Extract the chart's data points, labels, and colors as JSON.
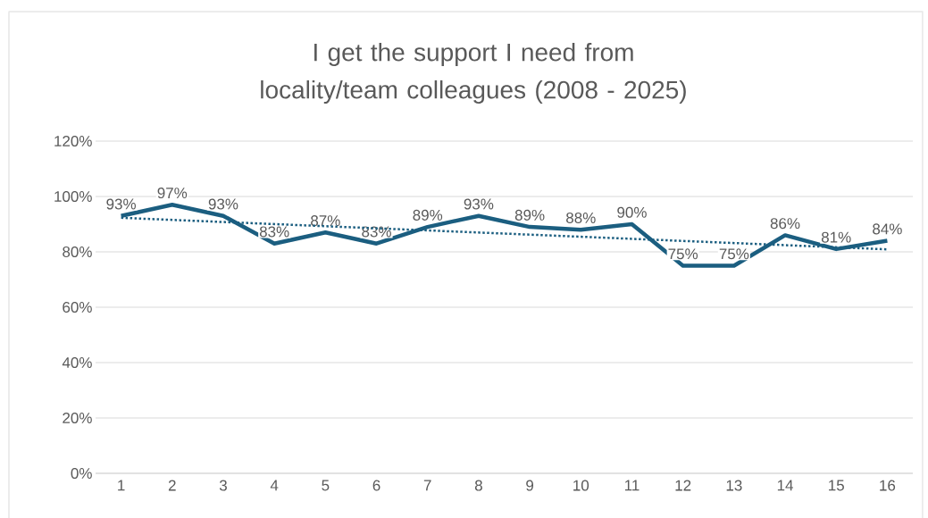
{
  "chart_data": {
    "type": "line",
    "title": "I get the support I need from locality/team colleagues (2008 - 2025)",
    "x": [
      1,
      2,
      3,
      4,
      5,
      6,
      7,
      8,
      9,
      10,
      11,
      12,
      13,
      14,
      15,
      16
    ],
    "xlim": [
      0.5,
      16.5
    ],
    "xticks": [
      1,
      2,
      3,
      4,
      5,
      6,
      7,
      8,
      9,
      10,
      11,
      12,
      13,
      14,
      15,
      16
    ],
    "ylim": [
      0,
      120
    ],
    "yticks": [
      {
        "value": 0,
        "label": "0%"
      },
      {
        "value": 20,
        "label": "20%"
      },
      {
        "value": 40,
        "label": "40%"
      },
      {
        "value": 60,
        "label": "60%"
      },
      {
        "value": 80,
        "label": "80%"
      },
      {
        "value": 100,
        "label": "100%"
      },
      {
        "value": 120,
        "label": "120%"
      }
    ],
    "grid": "y",
    "series": [
      {
        "color": "#1b5e80",
        "line_style": "solid",
        "values": [
          93,
          97,
          93,
          83,
          87,
          83,
          89,
          93,
          89,
          88,
          90,
          75,
          75,
          86,
          81,
          84
        ],
        "value_labels": [
          "93%",
          "97%",
          "93%",
          "83%",
          "87%",
          "83%",
          "89%",
          "93%",
          "89%",
          "88%",
          "90%",
          "75%",
          "75%",
          "86%",
          "81%",
          "84%"
        ]
      },
      {
        "type": "line",
        "color": "#1b5e80",
        "line_style": "dotted",
        "x": [
          1,
          16
        ],
        "values": [
          92.3,
          80.9
        ]
      }
    ]
  }
}
